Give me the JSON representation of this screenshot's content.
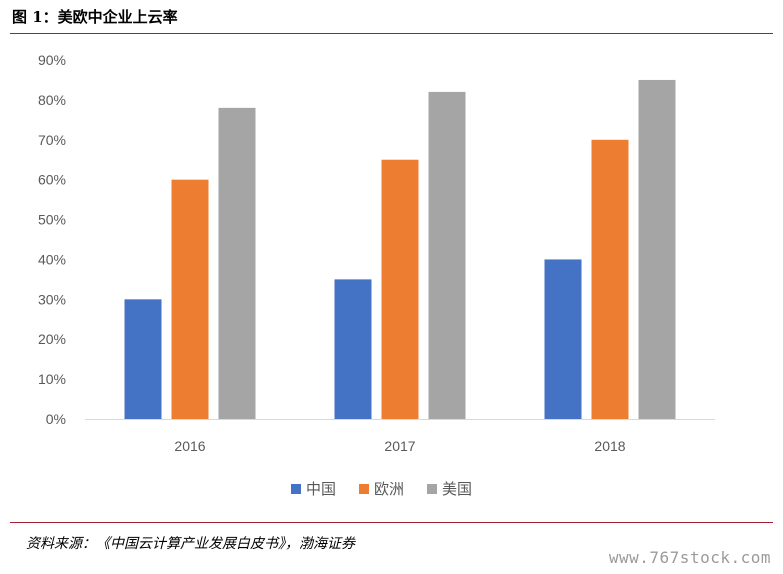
{
  "figure": {
    "title": "图 1：美欧中企业上云率",
    "source": "资料来源：《中国云计算产业发展白皮书》，渤海证券",
    "watermark": "www.767stock.com"
  },
  "chart_data": {
    "type": "bar",
    "categories": [
      "2016",
      "2017",
      "2018"
    ],
    "series": [
      {
        "name": "中国",
        "values": [
          0.3,
          0.35,
          0.4
        ],
        "color": "#4472C4"
      },
      {
        "name": "欧洲",
        "values": [
          0.6,
          0.65,
          0.7
        ],
        "color": "#ED7D31"
      },
      {
        "name": "美国",
        "values": [
          0.78,
          0.82,
          0.85
        ],
        "color": "#A5A5A5"
      }
    ],
    "ylim": [
      0,
      0.9
    ],
    "yticks": [
      "0%",
      "10%",
      "20%",
      "30%",
      "40%",
      "50%",
      "60%",
      "70%",
      "80%",
      "90%"
    ],
    "grid": false,
    "legend": "bottom"
  }
}
